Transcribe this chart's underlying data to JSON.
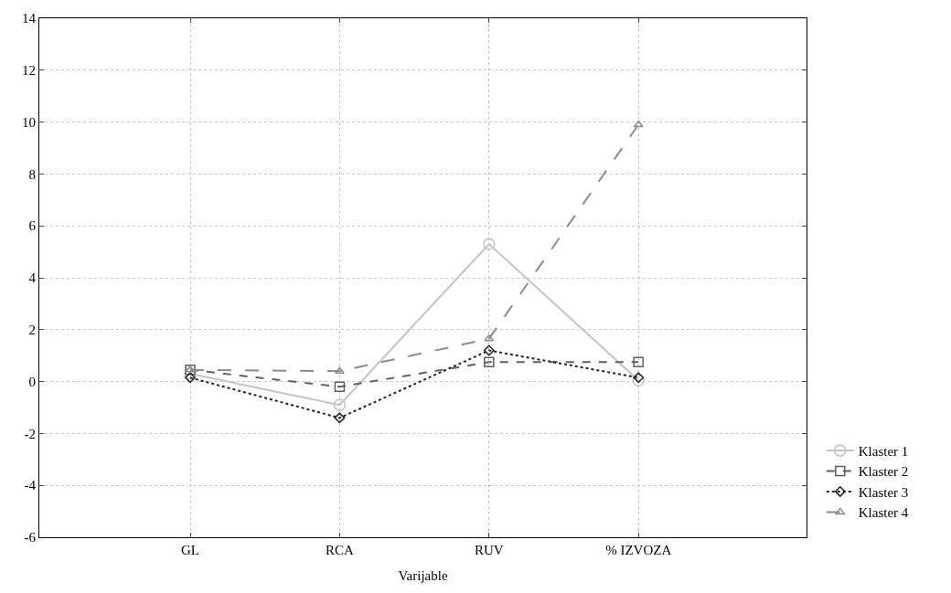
{
  "chart_data": {
    "type": "line",
    "xlabel": "Varijable",
    "categories": [
      "GL",
      "RCA",
      "RUV",
      "% IZVOZA"
    ],
    "ylim": [
      -6,
      14
    ],
    "yticks": [
      -6,
      -4,
      -2,
      0,
      2,
      4,
      6,
      8,
      10,
      12,
      14
    ],
    "grid": true,
    "legend": "bottom right",
    "series": [
      {
        "name": "Klaster 1",
        "color": "#c4c4c4",
        "marker": "circle",
        "line_style": "solid",
        "values": [
          0.3,
          -0.9,
          5.3,
          0.05
        ]
      },
      {
        "name": "Klaster 2",
        "color": "#606060",
        "marker": "square",
        "line_style": "dashed",
        "values": [
          0.45,
          -0.2,
          0.75,
          0.75
        ]
      },
      {
        "name": "Klaster 3",
        "color": "#222222",
        "marker": "diamond",
        "line_style": "dotted",
        "values": [
          0.15,
          -1.4,
          1.2,
          0.15
        ]
      },
      {
        "name": "Klaster 4",
        "color": "#8c8c8c",
        "marker": "triangle",
        "line_style": "longdash",
        "values": [
          0.45,
          0.4,
          1.65,
          9.9
        ]
      }
    ]
  }
}
